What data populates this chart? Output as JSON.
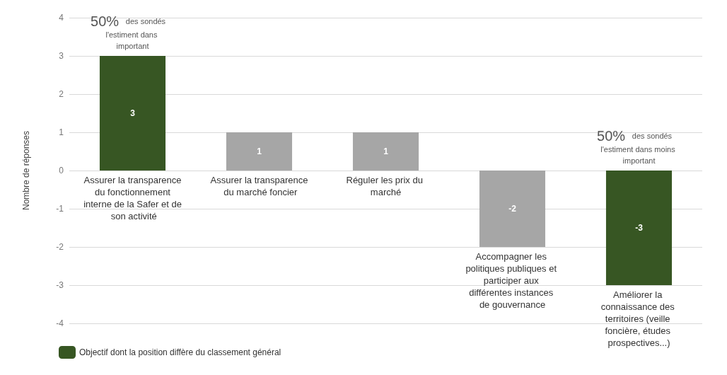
{
  "chart_data": {
    "type": "bar",
    "ylabel": "Nombre de réponses",
    "categories": [
      "Assurer la transparence du fonctionnement interne de la Safer et de son activité",
      "Assurer la transparence du marché foncier",
      "Réguler les prix du marché",
      "Accompagner les politiques publiques et participer aux différentes instances de gouvernance",
      "Améliorer la connaissance des territoires (veille foncière, études prospectives...)"
    ],
    "series": [
      {
        "name": "Objectif dont la position diffère du classement général",
        "color": "#375623",
        "values": [
          3,
          null,
          null,
          null,
          -3
        ]
      },
      {
        "color": "#a6a6a6",
        "values": [
          null,
          1,
          1,
          -2,
          null
        ]
      }
    ],
    "stacked": true,
    "data_labels": true,
    "ylim": [
      -4,
      4
    ],
    "yticks": [
      -4,
      -3,
      -2,
      -1,
      0,
      1,
      2,
      3,
      4
    ],
    "grid": "y",
    "legend": "bottom left",
    "annotations": [
      {
        "text": "50% des sondés l'estiment dans important",
        "x": "Assurer la transparence du fonctionnement interne de la Safer et de son activité",
        "y": 3
      },
      {
        "text": "50% des sondés l'estiment dans moins important",
        "x": "Améliorer la connaissance des territoires (veille foncière, études prospectives...)",
        "y": 0
      }
    ]
  }
}
